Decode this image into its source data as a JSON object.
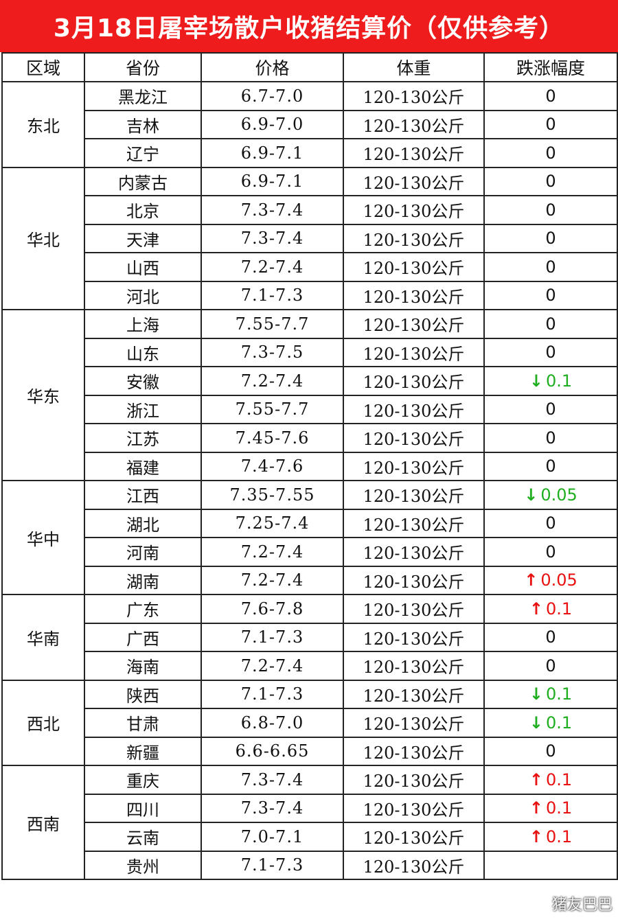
{
  "title": "3月18日屠宰场散户收猪结算价（仅供参考）",
  "headers": [
    "区域",
    "省份",
    "价格",
    "体重",
    "跌涨幅度"
  ],
  "colors": {
    "title_bg": "#ee1c1c",
    "up": "#e81010",
    "down": "#1fae1f"
  },
  "watermark": "猪友巴巴",
  "groups": [
    {
      "region": "东北",
      "rows": [
        {
          "province": "黑龙江",
          "price": "6.7-7.0",
          "weight": "120-130公斤",
          "change": "0",
          "dir": ""
        },
        {
          "province": "吉林",
          "price": "6.9-7.0",
          "weight": "120-130公斤",
          "change": "0",
          "dir": ""
        },
        {
          "province": "辽宁",
          "price": "6.9-7.1",
          "weight": "120-130公斤",
          "change": "0",
          "dir": ""
        }
      ]
    },
    {
      "region": "华北",
      "rows": [
        {
          "province": "内蒙古",
          "price": "6.9-7.1",
          "weight": "120-130公斤",
          "change": "0",
          "dir": ""
        },
        {
          "province": "北京",
          "price": "7.3-7.4",
          "weight": "120-130公斤",
          "change": "0",
          "dir": ""
        },
        {
          "province": "天津",
          "price": "7.3-7.4",
          "weight": "120-130公斤",
          "change": "0",
          "dir": ""
        },
        {
          "province": "山西",
          "price": "7.2-7.4",
          "weight": "120-130公斤",
          "change": "0",
          "dir": ""
        },
        {
          "province": "河北",
          "price": "7.1-7.3",
          "weight": "120-130公斤",
          "change": "0",
          "dir": ""
        }
      ]
    },
    {
      "region": "华东",
      "rows": [
        {
          "province": "上海",
          "price": "7.55-7.7",
          "weight": "120-130公斤",
          "change": "0",
          "dir": ""
        },
        {
          "province": "山东",
          "price": "7.3-7.5",
          "weight": "120-130公斤",
          "change": "0",
          "dir": ""
        },
        {
          "province": "安徽",
          "price": "7.2-7.4",
          "weight": "120-130公斤",
          "change": "0.1",
          "dir": "down"
        },
        {
          "province": "浙江",
          "price": "7.55-7.7",
          "weight": "120-130公斤",
          "change": "0",
          "dir": ""
        },
        {
          "province": "江苏",
          "price": "7.45-7.6",
          "weight": "120-130公斤",
          "change": "0",
          "dir": ""
        },
        {
          "province": "福建",
          "price": "7.4-7.6",
          "weight": "120-130公斤",
          "change": "0",
          "dir": ""
        }
      ]
    },
    {
      "region": "华中",
      "rows": [
        {
          "province": "江西",
          "price": "7.35-7.55",
          "weight": "120-130公斤",
          "change": "0.05",
          "dir": "down"
        },
        {
          "province": "湖北",
          "price": "7.25-7.4",
          "weight": "120-130公斤",
          "change": "0",
          "dir": ""
        },
        {
          "province": "河南",
          "price": "7.2-7.4",
          "weight": "120-130公斤",
          "change": "0",
          "dir": ""
        },
        {
          "province": "湖南",
          "price": "7.2-7.4",
          "weight": "120-130公斤",
          "change": "0.05",
          "dir": "up"
        }
      ]
    },
    {
      "region": "华南",
      "rows": [
        {
          "province": "广东",
          "price": "7.6-7.8",
          "weight": "120-130公斤",
          "change": "0.1",
          "dir": "up"
        },
        {
          "province": "广西",
          "price": "7.1-7.3",
          "weight": "120-130公斤",
          "change": "0",
          "dir": ""
        },
        {
          "province": "海南",
          "price": "7.2-7.4",
          "weight": "120-130公斤",
          "change": "0",
          "dir": ""
        }
      ]
    },
    {
      "region": "西北",
      "rows": [
        {
          "province": "陕西",
          "price": "7.1-7.3",
          "weight": "120-130公斤",
          "change": "0.1",
          "dir": "down"
        },
        {
          "province": "甘肃",
          "price": "6.8-7.0",
          "weight": "120-130公斤",
          "change": "0.1",
          "dir": "down"
        },
        {
          "province": "新疆",
          "price": "6.6-6.65",
          "weight": "120-130公斤",
          "change": "0",
          "dir": ""
        }
      ]
    },
    {
      "region": "西南",
      "rows": [
        {
          "province": "重庆",
          "price": "7.3-7.4",
          "weight": "120-130公斤",
          "change": "0.1",
          "dir": "up"
        },
        {
          "province": "四川",
          "price": "7.3-7.4",
          "weight": "120-130公斤",
          "change": "0.1",
          "dir": "up"
        },
        {
          "province": "云南",
          "price": "7.0-7.1",
          "weight": "120-130公斤",
          "change": "0.1",
          "dir": "up"
        },
        {
          "province": "贵州",
          "price": "7.1-7.3",
          "weight": "120-130公斤",
          "change": "",
          "dir": ""
        }
      ]
    }
  ]
}
